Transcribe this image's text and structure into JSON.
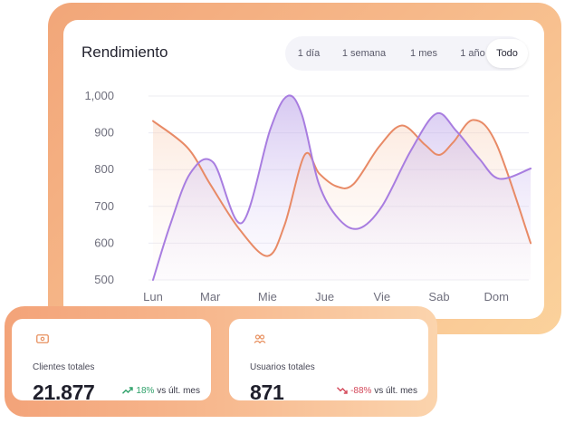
{
  "card": {
    "title": "Rendimiento",
    "range_options": [
      "1 día",
      "1 semana",
      "1 mes",
      "1 año",
      "Todo"
    ],
    "range_selected": "Todo"
  },
  "chart_data": {
    "type": "area",
    "categories": [
      "Lun",
      "Mar",
      "Mie",
      "Jue",
      "Vie",
      "Sab",
      "Dom"
    ],
    "ylim": [
      500,
      1000
    ],
    "yticks": [
      "500",
      "600",
      "700",
      "800",
      "900",
      "1,000"
    ],
    "grid": true,
    "series": [
      {
        "color": "#e88a66",
        "x": [
          0,
          0.6,
          1.0,
          1.5,
          2.0,
          2.3,
          2.65,
          2.9,
          3.2,
          3.5,
          3.95,
          4.35,
          4.75,
          5.0,
          5.25,
          5.6,
          6.0,
          6.6
        ],
        "y": [
          932,
          860,
          760,
          640,
          565,
          650,
          840,
          790,
          755,
          760,
          862,
          920,
          868,
          840,
          875,
          935,
          870,
          600
        ]
      },
      {
        "color": "#a87de0",
        "x": [
          0,
          0.3,
          0.65,
          1.05,
          1.55,
          2.05,
          2.35,
          2.6,
          2.9,
          3.25,
          3.6,
          4.0,
          4.5,
          4.95,
          5.3,
          5.7,
          6.05,
          6.6
        ],
        "y": [
          500,
          650,
          790,
          820,
          655,
          910,
          1000,
          950,
          760,
          665,
          640,
          700,
          850,
          952,
          905,
          830,
          775,
          803
        ]
      }
    ]
  },
  "stats": [
    {
      "icon": "money-icon",
      "label": "Clientes totales",
      "value": "21.877",
      "change": "18%",
      "suffix": "vs últ. mes",
      "trend": "up",
      "trend_color": "#2fa16a"
    },
    {
      "icon": "users-icon",
      "label": "Usuarios totales",
      "value": "871",
      "change": "-88%",
      "suffix": "vs últ. mes",
      "trend": "down",
      "trend_color": "#d4495b"
    }
  ]
}
